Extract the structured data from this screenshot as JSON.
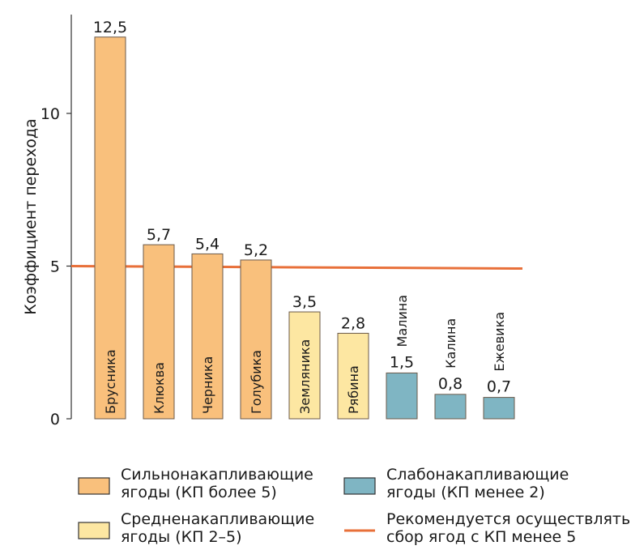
{
  "chart_data": {
    "type": "bar",
    "ylabel": "Коэффициент перехода",
    "ylim": [
      0,
      13
    ],
    "yticks": [
      0,
      5,
      10
    ],
    "ytick_labels": [
      "0",
      "5",
      "10"
    ],
    "categories": [
      "Брусника",
      "Клюква",
      "Черника",
      "Голубика",
      "Земляника",
      "Рябина",
      "Малина",
      "Калина",
      "Ежевика"
    ],
    "values": [
      12.5,
      5.7,
      5.4,
      5.2,
      3.5,
      2.8,
      1.5,
      0.8,
      0.7
    ],
    "value_labels": [
      "12,5",
      "5,7",
      "5,4",
      "5,2",
      "3,5",
      "2,8",
      "1,5",
      "0,8",
      "0,7"
    ],
    "groups": [
      "strong",
      "strong",
      "strong",
      "strong",
      "medium",
      "medium",
      "weak",
      "weak",
      "weak"
    ],
    "reference_line": {
      "value": 5,
      "label": "Рекомендуется осуществлять сбор ягод с КП менее 5",
      "color": "#e8703a"
    },
    "legend": [
      {
        "key": "strong",
        "line1": "Сильнонакапливающие",
        "line2": "ягоды (КП более 5)",
        "color": "#f9c07c"
      },
      {
        "key": "weak",
        "line1": "Слабонакапливающие",
        "line2": "ягоды (КП менее 2)",
        "color": "#7fb5c3"
      },
      {
        "key": "medium",
        "line1": "Средненакапливающие",
        "line2": "ягоды (КП 2–5)",
        "color": "#fde7a2"
      },
      {
        "key": "ref",
        "line1": "Рекомендуется осуществлять",
        "line2": "сбор ягод с КП менее 5",
        "color": "#e8703a"
      }
    ],
    "legend_placement": "bottom",
    "grid": false
  }
}
